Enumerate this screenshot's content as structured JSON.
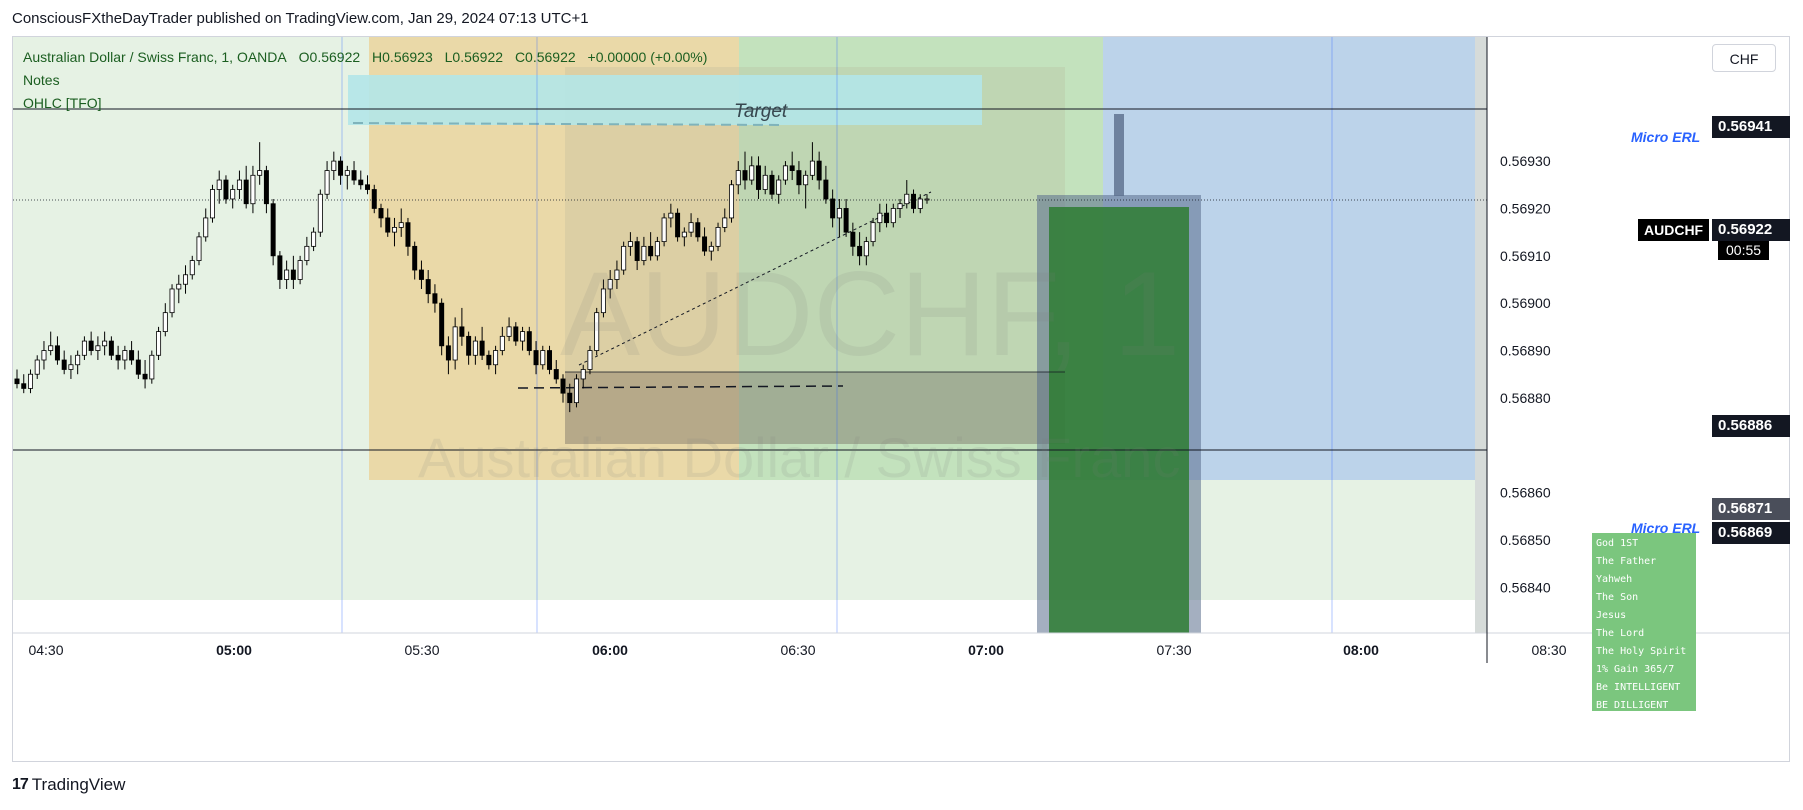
{
  "header": {
    "publisher_line": "ConsciousFXtheDayTrader published on TradingView.com, Jan 29, 2024 07:13 UTC+1"
  },
  "legend": {
    "symbol": "Australian Dollar / Swiss Franc, 1, OANDA",
    "open": "O0.56922",
    "high": "H0.56923",
    "low": "L0.56922",
    "close": "C0.56922",
    "change": "+0.00000 (+0.00%)",
    "indicator_1": "Notes",
    "indicator_2": "OHLC [TFO]"
  },
  "toolbar": {
    "currency_label": "CHF"
  },
  "watermark": {
    "ticker": "AUDCHF, 1",
    "name": "Australian Dollar / Swiss Franc"
  },
  "annotations": {
    "target_label": "Target",
    "micro_erl_top": "Micro ERL",
    "micro_erl_bottom": "Micro ERL"
  },
  "price_tags": {
    "level_high": "0.56941",
    "current_symbol": "AUDCHF",
    "current_price": "0.56922",
    "countdown": "00:55",
    "level_mid": "0.56886",
    "level_low_grey": "0.56871",
    "level_low": "0.56869"
  },
  "notes_box": {
    "lines": [
      "God 1ST",
      "The Father",
      "Yahweh",
      "The Son",
      "Jesus",
      "The Lord",
      "The Holy Spirit",
      "1% Gain 365/7",
      "Be INTELLIGENT",
      "BE DILLIGENT"
    ]
  },
  "footer": {
    "brand": "TradingView"
  },
  "colors": {
    "up_candle": "#ffffff",
    "down_candle": "#000000",
    "session_green": "#e6f2e4",
    "session_tan": "#ead9a8",
    "session_green_dark": "#c3e2bd",
    "session_blue": "#bcd3ea",
    "target_zone": "#b3e6e8",
    "box_grey": "#9e9a96",
    "long_green": "#2e7d32"
  },
  "chart_data": {
    "type": "candlestick",
    "symbol": "AUDCHF",
    "timeframe": "1",
    "y_axis": {
      "range": [
        0.56835,
        0.56945
      ],
      "ticks": [
        0.5693,
        0.5692,
        0.5691,
        0.569,
        0.5689,
        0.5688,
        0.5686,
        0.5685,
        0.5684
      ]
    },
    "x_axis": {
      "ticks": [
        {
          "label": "04:30",
          "bold": false
        },
        {
          "label": "05:00",
          "bold": true
        },
        {
          "label": "05:30",
          "bold": false
        },
        {
          "label": "06:00",
          "bold": true
        },
        {
          "label": "06:30",
          "bold": false
        },
        {
          "label": "07:00",
          "bold": true
        },
        {
          "label": "07:30",
          "bold": false
        },
        {
          "label": "08:00",
          "bold": true
        },
        {
          "label": "08:30",
          "bold": false
        }
      ]
    },
    "horizontal_levels": [
      0.56941,
      0.56922,
      0.56886,
      0.56869
    ],
    "candles_ohlc": [
      [
        0.56884,
        0.56886,
        0.56882,
        0.56883
      ],
      [
        0.56883,
        0.56885,
        0.56881,
        0.56882
      ],
      [
        0.56882,
        0.56886,
        0.56881,
        0.56885
      ],
      [
        0.56885,
        0.56889,
        0.56884,
        0.56888
      ],
      [
        0.56888,
        0.56892,
        0.56886,
        0.5689
      ],
      [
        0.5689,
        0.56894,
        0.56889,
        0.56891
      ],
      [
        0.56891,
        0.56893,
        0.56887,
        0.56888
      ],
      [
        0.56888,
        0.5689,
        0.56885,
        0.56886
      ],
      [
        0.56886,
        0.56889,
        0.56884,
        0.56887
      ],
      [
        0.56887,
        0.5689,
        0.56885,
        0.56889
      ],
      [
        0.56889,
        0.56893,
        0.56888,
        0.56892
      ],
      [
        0.56892,
        0.56894,
        0.56889,
        0.5689
      ],
      [
        0.5689,
        0.56893,
        0.56888,
        0.56891
      ],
      [
        0.56891,
        0.56894,
        0.56889,
        0.56892
      ],
      [
        0.56892,
        0.56893,
        0.56888,
        0.56889
      ],
      [
        0.56889,
        0.56891,
        0.56886,
        0.56888
      ],
      [
        0.56888,
        0.56891,
        0.56886,
        0.5689
      ],
      [
        0.5689,
        0.56892,
        0.56887,
        0.56888
      ],
      [
        0.56888,
        0.5689,
        0.56884,
        0.56885
      ],
      [
        0.56885,
        0.56888,
        0.56882,
        0.56884
      ],
      [
        0.56884,
        0.5689,
        0.56883,
        0.56889
      ],
      [
        0.56889,
        0.56895,
        0.56888,
        0.56894
      ],
      [
        0.56894,
        0.569,
        0.56893,
        0.56898
      ],
      [
        0.56898,
        0.56904,
        0.56897,
        0.56903
      ],
      [
        0.56903,
        0.56906,
        0.569,
        0.56904
      ],
      [
        0.56904,
        0.56908,
        0.56902,
        0.56906
      ],
      [
        0.56906,
        0.5691,
        0.56905,
        0.56909
      ],
      [
        0.56909,
        0.56915,
        0.56908,
        0.56914
      ],
      [
        0.56914,
        0.5692,
        0.56913,
        0.56918
      ],
      [
        0.56918,
        0.56925,
        0.56917,
        0.56924
      ],
      [
        0.56924,
        0.56928,
        0.56921,
        0.56926
      ],
      [
        0.56926,
        0.56927,
        0.56921,
        0.56922
      ],
      [
        0.56922,
        0.56925,
        0.5692,
        0.56924
      ],
      [
        0.56924,
        0.56928,
        0.56922,
        0.56926
      ],
      [
        0.56926,
        0.56929,
        0.5692,
        0.56921
      ],
      [
        0.56921,
        0.56929,
        0.56919,
        0.56927
      ],
      [
        0.56927,
        0.56934,
        0.56925,
        0.56928
      ],
      [
        0.56928,
        0.56929,
        0.56919,
        0.56921
      ],
      [
        0.56921,
        0.56922,
        0.56908,
        0.5691
      ],
      [
        0.5691,
        0.56911,
        0.56903,
        0.56905
      ],
      [
        0.56905,
        0.56909,
        0.56903,
        0.56907
      ],
      [
        0.56907,
        0.5691,
        0.56903,
        0.56905
      ],
      [
        0.56905,
        0.5691,
        0.56904,
        0.56909
      ],
      [
        0.56909,
        0.56914,
        0.56908,
        0.56912
      ],
      [
        0.56912,
        0.56916,
        0.56911,
        0.56915
      ],
      [
        0.56915,
        0.56924,
        0.56914,
        0.56923
      ],
      [
        0.56923,
        0.5693,
        0.56922,
        0.56928
      ],
      [
        0.56928,
        0.56932,
        0.56926,
        0.5693
      ],
      [
        0.5693,
        0.56931,
        0.56925,
        0.56927
      ],
      [
        0.56927,
        0.56929,
        0.56924,
        0.56928
      ],
      [
        0.56928,
        0.5693,
        0.56925,
        0.56926
      ],
      [
        0.56926,
        0.56928,
        0.56924,
        0.56925
      ],
      [
        0.56925,
        0.56927,
        0.56923,
        0.56924
      ],
      [
        0.56924,
        0.56925,
        0.56919,
        0.5692
      ],
      [
        0.5692,
        0.56921,
        0.56916,
        0.56918
      ],
      [
        0.56918,
        0.5692,
        0.56914,
        0.56915
      ],
      [
        0.56915,
        0.56918,
        0.56912,
        0.56916
      ],
      [
        0.56916,
        0.5692,
        0.56914,
        0.56917
      ],
      [
        0.56917,
        0.56918,
        0.5691,
        0.56912
      ],
      [
        0.56912,
        0.56913,
        0.56905,
        0.56907
      ],
      [
        0.56907,
        0.56909,
        0.56903,
        0.56905
      ],
      [
        0.56905,
        0.56907,
        0.569,
        0.56902
      ],
      [
        0.56902,
        0.56904,
        0.56898,
        0.569
      ],
      [
        0.569,
        0.56901,
        0.56889,
        0.56891
      ],
      [
        0.56891,
        0.56893,
        0.56885,
        0.56888
      ],
      [
        0.56888,
        0.56897,
        0.56886,
        0.56895
      ],
      [
        0.56895,
        0.56899,
        0.56891,
        0.56893
      ],
      [
        0.56893,
        0.56894,
        0.56887,
        0.56889
      ],
      [
        0.56889,
        0.56893,
        0.56887,
        0.56892
      ],
      [
        0.56892,
        0.56895,
        0.56888,
        0.56889
      ],
      [
        0.56889,
        0.5689,
        0.56886,
        0.56887
      ],
      [
        0.56887,
        0.56891,
        0.56885,
        0.5689
      ],
      [
        0.5689,
        0.56895,
        0.56889,
        0.56893
      ],
      [
        0.56893,
        0.56897,
        0.56892,
        0.56895
      ],
      [
        0.56895,
        0.56896,
        0.56891,
        0.56892
      ],
      [
        0.56892,
        0.56895,
        0.5689,
        0.56894
      ],
      [
        0.56894,
        0.56895,
        0.56889,
        0.5689
      ],
      [
        0.5689,
        0.56892,
        0.56885,
        0.56887
      ],
      [
        0.56887,
        0.56891,
        0.56886,
        0.5689
      ],
      [
        0.5689,
        0.56891,
        0.56885,
        0.56886
      ],
      [
        0.56886,
        0.56888,
        0.56883,
        0.56884
      ],
      [
        0.56884,
        0.56885,
        0.56879,
        0.56881
      ],
      [
        0.56881,
        0.56883,
        0.56877,
        0.56879
      ],
      [
        0.56879,
        0.56885,
        0.56878,
        0.56884
      ],
      [
        0.56884,
        0.56887,
        0.56882,
        0.56886
      ],
      [
        0.56886,
        0.56891,
        0.56885,
        0.5689
      ],
      [
        0.5689,
        0.56899,
        0.56889,
        0.56898
      ],
      [
        0.56898,
        0.56905,
        0.56897,
        0.56903
      ],
      [
        0.56903,
        0.56907,
        0.56901,
        0.56905
      ],
      [
        0.56905,
        0.56909,
        0.56903,
        0.56907
      ],
      [
        0.56907,
        0.56913,
        0.56906,
        0.56912
      ],
      [
        0.56912,
        0.56915,
        0.5691,
        0.56913
      ],
      [
        0.56913,
        0.56914,
        0.56907,
        0.56909
      ],
      [
        0.56909,
        0.56914,
        0.56908,
        0.56912
      ],
      [
        0.56912,
        0.56915,
        0.56909,
        0.5691
      ],
      [
        0.5691,
        0.56914,
        0.56909,
        0.56913
      ],
      [
        0.56913,
        0.56919,
        0.56912,
        0.56918
      ],
      [
        0.56918,
        0.56921,
        0.56916,
        0.56919
      ],
      [
        0.56919,
        0.5692,
        0.56913,
        0.56914
      ],
      [
        0.56914,
        0.56916,
        0.56912,
        0.56915
      ],
      [
        0.56915,
        0.56919,
        0.56914,
        0.56917
      ],
      [
        0.56917,
        0.56918,
        0.56913,
        0.56914
      ],
      [
        0.56914,
        0.56916,
        0.5691,
        0.56911
      ],
      [
        0.56911,
        0.56913,
        0.56909,
        0.56912
      ],
      [
        0.56912,
        0.56917,
        0.56911,
        0.56916
      ],
      [
        0.56916,
        0.5692,
        0.56915,
        0.56918
      ],
      [
        0.56918,
        0.56926,
        0.56917,
        0.56925
      ],
      [
        0.56925,
        0.5693,
        0.56923,
        0.56928
      ],
      [
        0.56928,
        0.56932,
        0.56924,
        0.56926
      ],
      [
        0.56926,
        0.56931,
        0.56925,
        0.56929
      ],
      [
        0.56929,
        0.56931,
        0.56922,
        0.56924
      ],
      [
        0.56924,
        0.56929,
        0.56923,
        0.56927
      ],
      [
        0.56927,
        0.56928,
        0.56922,
        0.56923
      ],
      [
        0.56923,
        0.56927,
        0.56921,
        0.56926
      ],
      [
        0.56926,
        0.5693,
        0.56925,
        0.56929
      ],
      [
        0.56929,
        0.56932,
        0.56926,
        0.56928
      ],
      [
        0.56928,
        0.5693,
        0.56923,
        0.56925
      ],
      [
        0.56925,
        0.56928,
        0.5692,
        0.56927
      ],
      [
        0.56927,
        0.56934,
        0.56926,
        0.5693
      ],
      [
        0.5693,
        0.56932,
        0.56924,
        0.56926
      ],
      [
        0.56926,
        0.56929,
        0.56921,
        0.56922
      ],
      [
        0.56922,
        0.56924,
        0.56916,
        0.56918
      ],
      [
        0.56918,
        0.56922,
        0.56914,
        0.5692
      ],
      [
        0.5692,
        0.56922,
        0.56914,
        0.56915
      ],
      [
        0.56915,
        0.56917,
        0.5691,
        0.56912
      ],
      [
        0.56912,
        0.56915,
        0.56908,
        0.5691
      ],
      [
        0.5691,
        0.56914,
        0.56908,
        0.56913
      ],
      [
        0.56913,
        0.56918,
        0.56912,
        0.56917
      ],
      [
        0.56917,
        0.56921,
        0.56915,
        0.56919
      ],
      [
        0.56919,
        0.56921,
        0.56916,
        0.56917
      ],
      [
        0.56917,
        0.56921,
        0.56916,
        0.5692
      ],
      [
        0.5692,
        0.56922,
        0.56918,
        0.56921
      ],
      [
        0.56921,
        0.56926,
        0.5692,
        0.56923
      ],
      [
        0.56923,
        0.56924,
        0.56919,
        0.5692
      ],
      [
        0.5692,
        0.56923,
        0.56919,
        0.56922
      ],
      [
        0.56922,
        0.56923,
        0.56921,
        0.56922
      ]
    ]
  }
}
